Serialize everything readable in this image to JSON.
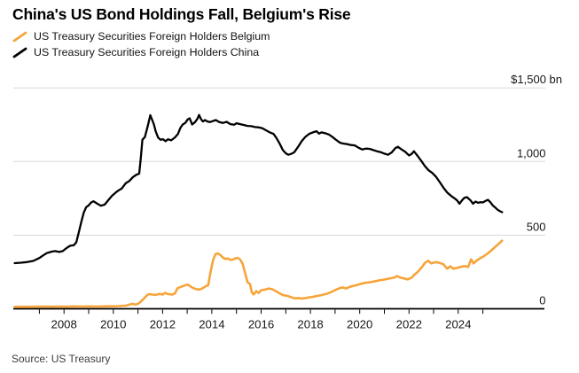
{
  "header": {
    "title": "China's US Bond Holdings Fall, Belgium's Rise"
  },
  "footer": {
    "source": "Source: US Treasury"
  },
  "colors": {
    "accent_orange": "#F7A43A",
    "series_black": "#000000",
    "grid": "#D7D7D7",
    "axis": "#000000",
    "text": "#161616",
    "muted_text": "#3C3C3C"
  },
  "chart_data": {
    "type": "line",
    "title": "China's US Bond Holdings Fall, Belgium's Rise",
    "unit": "$ bn",
    "ylim": [
      0,
      1500
    ],
    "yticks": [
      {
        "value": 1500,
        "label": "$1,500 bn"
      },
      {
        "value": 1000,
        "label": "1,000"
      },
      {
        "value": 500,
        "label": "500"
      },
      {
        "value": 0,
        "label": "0"
      }
    ],
    "xticks_labeled": [
      2008,
      2010,
      2012,
      2014,
      2016,
      2018,
      2020,
      2022,
      2024
    ],
    "xticks_minor_years": [
      2007,
      2008,
      2009,
      2010,
      2011,
      2012,
      2013,
      2014,
      2015,
      2016,
      2017,
      2018,
      2019,
      2020,
      2021,
      2022,
      2023,
      2024,
      2025
    ],
    "x_range": [
      2006,
      2025.78
    ],
    "grid": "horizontal",
    "legend_position": "top-left",
    "series": [
      {
        "id": "belgium",
        "name": "US Treasury Securities Foreign Holders Belgium",
        "color": "#F7A43A",
        "stroke_width": 2.6,
        "points": [
          [
            2006.0,
            13
          ],
          [
            2006.3,
            14
          ],
          [
            2006.6,
            13
          ],
          [
            2006.9,
            14
          ],
          [
            2007.2,
            15
          ],
          [
            2007.5,
            14
          ],
          [
            2007.8,
            15
          ],
          [
            2008.1,
            14
          ],
          [
            2008.4,
            16
          ],
          [
            2008.7,
            15
          ],
          [
            2009.0,
            16
          ],
          [
            2009.3,
            15
          ],
          [
            2009.6,
            16
          ],
          [
            2009.9,
            17
          ],
          [
            2010.2,
            18
          ],
          [
            2010.5,
            21
          ],
          [
            2010.7,
            30
          ],
          [
            2010.78,
            34
          ],
          [
            2010.9,
            28
          ],
          [
            2011.0,
            33
          ],
          [
            2011.1,
            46
          ],
          [
            2011.2,
            62
          ],
          [
            2011.3,
            80
          ],
          [
            2011.4,
            96
          ],
          [
            2011.5,
            99
          ],
          [
            2011.6,
            96
          ],
          [
            2011.7,
            94
          ],
          [
            2011.8,
            98
          ],
          [
            2011.9,
            101
          ],
          [
            2012.0,
            96
          ],
          [
            2012.1,
            108
          ],
          [
            2012.2,
            101
          ],
          [
            2012.3,
            98
          ],
          [
            2012.4,
            97
          ],
          [
            2012.5,
            104
          ],
          [
            2012.6,
            138
          ],
          [
            2012.7,
            146
          ],
          [
            2012.8,
            152
          ],
          [
            2012.9,
            158
          ],
          [
            2013.0,
            164
          ],
          [
            2013.1,
            156
          ],
          [
            2013.2,
            144
          ],
          [
            2013.3,
            137
          ],
          [
            2013.45,
            130
          ],
          [
            2013.55,
            133
          ],
          [
            2013.65,
            142
          ],
          [
            2013.75,
            152
          ],
          [
            2013.85,
            160
          ],
          [
            2013.95,
            255
          ],
          [
            2014.05,
            330
          ],
          [
            2014.15,
            372
          ],
          [
            2014.25,
            376
          ],
          [
            2014.35,
            364
          ],
          [
            2014.45,
            348
          ],
          [
            2014.55,
            338
          ],
          [
            2014.65,
            342
          ],
          [
            2014.75,
            332
          ],
          [
            2014.85,
            334
          ],
          [
            2014.95,
            342
          ],
          [
            2015.05,
            346
          ],
          [
            2015.15,
            334
          ],
          [
            2015.25,
            305
          ],
          [
            2015.35,
            240
          ],
          [
            2015.45,
            180
          ],
          [
            2015.55,
            168
          ],
          [
            2015.62,
            112
          ],
          [
            2015.7,
            97
          ],
          [
            2015.8,
            120
          ],
          [
            2015.9,
            108
          ],
          [
            2016.0,
            126
          ],
          [
            2016.15,
            130
          ],
          [
            2016.3,
            138
          ],
          [
            2016.45,
            133
          ],
          [
            2016.6,
            120
          ],
          [
            2016.75,
            104
          ],
          [
            2016.9,
            92
          ],
          [
            2017.05,
            88
          ],
          [
            2017.2,
            80
          ],
          [
            2017.35,
            71
          ],
          [
            2017.5,
            73
          ],
          [
            2017.65,
            70
          ],
          [
            2017.8,
            73
          ],
          [
            2017.95,
            77
          ],
          [
            2018.1,
            81
          ],
          [
            2018.25,
            86
          ],
          [
            2018.4,
            91
          ],
          [
            2018.55,
            97
          ],
          [
            2018.7,
            104
          ],
          [
            2018.85,
            114
          ],
          [
            2019.0,
            127
          ],
          [
            2019.15,
            138
          ],
          [
            2019.3,
            145
          ],
          [
            2019.45,
            138
          ],
          [
            2019.6,
            149
          ],
          [
            2019.75,
            155
          ],
          [
            2019.9,
            162
          ],
          [
            2020.05,
            170
          ],
          [
            2020.2,
            175
          ],
          [
            2020.35,
            179
          ],
          [
            2020.5,
            183
          ],
          [
            2020.65,
            188
          ],
          [
            2020.8,
            193
          ],
          [
            2020.95,
            197
          ],
          [
            2021.1,
            202
          ],
          [
            2021.25,
            207
          ],
          [
            2021.4,
            212
          ],
          [
            2021.5,
            222
          ],
          [
            2021.65,
            212
          ],
          [
            2021.8,
            206
          ],
          [
            2021.95,
            200
          ],
          [
            2022.1,
            210
          ],
          [
            2022.2,
            228
          ],
          [
            2022.35,
            250
          ],
          [
            2022.5,
            278
          ],
          [
            2022.65,
            312
          ],
          [
            2022.78,
            326
          ],
          [
            2022.9,
            308
          ],
          [
            2023.0,
            313
          ],
          [
            2023.1,
            318
          ],
          [
            2023.25,
            311
          ],
          [
            2023.4,
            302
          ],
          [
            2023.55,
            272
          ],
          [
            2023.68,
            288
          ],
          [
            2023.8,
            272
          ],
          [
            2023.95,
            278
          ],
          [
            2024.1,
            284
          ],
          [
            2024.25,
            290
          ],
          [
            2024.4,
            284
          ],
          [
            2024.52,
            336
          ],
          [
            2024.62,
            308
          ],
          [
            2024.75,
            328
          ],
          [
            2024.9,
            344
          ],
          [
            2025.05,
            358
          ],
          [
            2025.2,
            376
          ],
          [
            2025.35,
            398
          ],
          [
            2025.5,
            420
          ],
          [
            2025.62,
            438
          ],
          [
            2025.78,
            463
          ]
        ]
      },
      {
        "id": "china",
        "name": "US Treasury Securities Foreign Holders China",
        "color": "#000000",
        "stroke_width": 2.3,
        "points": [
          [
            2006.0,
            310
          ],
          [
            2006.25,
            313
          ],
          [
            2006.5,
            317
          ],
          [
            2006.75,
            325
          ],
          [
            2007.0,
            345
          ],
          [
            2007.15,
            362
          ],
          [
            2007.3,
            378
          ],
          [
            2007.5,
            388
          ],
          [
            2007.65,
            392
          ],
          [
            2007.8,
            386
          ],
          [
            2007.95,
            392
          ],
          [
            2008.1,
            412
          ],
          [
            2008.25,
            428
          ],
          [
            2008.4,
            432
          ],
          [
            2008.5,
            452
          ],
          [
            2008.6,
            520
          ],
          [
            2008.7,
            590
          ],
          [
            2008.8,
            652
          ],
          [
            2008.9,
            690
          ],
          [
            2009.0,
            702
          ],
          [
            2009.1,
            722
          ],
          [
            2009.2,
            730
          ],
          [
            2009.35,
            714
          ],
          [
            2009.5,
            700
          ],
          [
            2009.65,
            708
          ],
          [
            2009.8,
            738
          ],
          [
            2009.95,
            768
          ],
          [
            2010.1,
            790
          ],
          [
            2010.2,
            802
          ],
          [
            2010.35,
            818
          ],
          [
            2010.5,
            852
          ],
          [
            2010.65,
            868
          ],
          [
            2010.8,
            895
          ],
          [
            2010.95,
            912
          ],
          [
            2011.05,
            918
          ],
          [
            2011.12,
            1030
          ],
          [
            2011.18,
            1148
          ],
          [
            2011.28,
            1166
          ],
          [
            2011.4,
            1242
          ],
          [
            2011.5,
            1315
          ],
          [
            2011.58,
            1282
          ],
          [
            2011.65,
            1252
          ],
          [
            2011.72,
            1205
          ],
          [
            2011.82,
            1162
          ],
          [
            2011.92,
            1148
          ],
          [
            2012.02,
            1152
          ],
          [
            2012.12,
            1138
          ],
          [
            2012.22,
            1151
          ],
          [
            2012.35,
            1144
          ],
          [
            2012.5,
            1164
          ],
          [
            2012.62,
            1186
          ],
          [
            2012.72,
            1228
          ],
          [
            2012.82,
            1252
          ],
          [
            2012.92,
            1262
          ],
          [
            2013.02,
            1286
          ],
          [
            2013.1,
            1294
          ],
          [
            2013.2,
            1252
          ],
          [
            2013.32,
            1268
          ],
          [
            2013.42,
            1292
          ],
          [
            2013.48,
            1317
          ],
          [
            2013.56,
            1288
          ],
          [
            2013.64,
            1272
          ],
          [
            2013.72,
            1282
          ],
          [
            2013.82,
            1272
          ],
          [
            2013.92,
            1268
          ],
          [
            2014.02,
            1274
          ],
          [
            2014.16,
            1282
          ],
          [
            2014.3,
            1268
          ],
          [
            2014.44,
            1262
          ],
          [
            2014.6,
            1270
          ],
          [
            2014.75,
            1254
          ],
          [
            2014.9,
            1250
          ],
          [
            2015.0,
            1260
          ],
          [
            2015.15,
            1254
          ],
          [
            2015.3,
            1248
          ],
          [
            2015.45,
            1242
          ],
          [
            2015.6,
            1240
          ],
          [
            2015.75,
            1234
          ],
          [
            2015.9,
            1232
          ],
          [
            2016.05,
            1226
          ],
          [
            2016.2,
            1212
          ],
          [
            2016.35,
            1198
          ],
          [
            2016.5,
            1188
          ],
          [
            2016.62,
            1160
          ],
          [
            2016.75,
            1122
          ],
          [
            2016.88,
            1078
          ],
          [
            2017.0,
            1056
          ],
          [
            2017.1,
            1046
          ],
          [
            2017.22,
            1052
          ],
          [
            2017.35,
            1064
          ],
          [
            2017.5,
            1100
          ],
          [
            2017.65,
            1140
          ],
          [
            2017.8,
            1168
          ],
          [
            2017.95,
            1188
          ],
          [
            2018.1,
            1198
          ],
          [
            2018.25,
            1206
          ],
          [
            2018.35,
            1190
          ],
          [
            2018.45,
            1198
          ],
          [
            2018.6,
            1192
          ],
          [
            2018.75,
            1184
          ],
          [
            2018.9,
            1166
          ],
          [
            2019.05,
            1146
          ],
          [
            2019.2,
            1128
          ],
          [
            2019.35,
            1122
          ],
          [
            2019.5,
            1118
          ],
          [
            2019.65,
            1112
          ],
          [
            2019.8,
            1110
          ],
          [
            2019.95,
            1094
          ],
          [
            2020.1,
            1082
          ],
          [
            2020.25,
            1088
          ],
          [
            2020.4,
            1086
          ],
          [
            2020.55,
            1078
          ],
          [
            2020.7,
            1070
          ],
          [
            2020.85,
            1064
          ],
          [
            2021.0,
            1054
          ],
          [
            2021.15,
            1046
          ],
          [
            2021.3,
            1062
          ],
          [
            2021.45,
            1092
          ],
          [
            2021.55,
            1100
          ],
          [
            2021.7,
            1082
          ],
          [
            2021.85,
            1066
          ],
          [
            2022.0,
            1042
          ],
          [
            2022.1,
            1050
          ],
          [
            2022.2,
            1070
          ],
          [
            2022.35,
            1038
          ],
          [
            2022.5,
            1004
          ],
          [
            2022.65,
            968
          ],
          [
            2022.8,
            940
          ],
          [
            2022.95,
            922
          ],
          [
            2023.1,
            896
          ],
          [
            2023.25,
            860
          ],
          [
            2023.4,
            822
          ],
          [
            2023.55,
            790
          ],
          [
            2023.7,
            768
          ],
          [
            2023.85,
            750
          ],
          [
            2023.95,
            736
          ],
          [
            2024.05,
            714
          ],
          [
            2024.15,
            736
          ],
          [
            2024.25,
            754
          ],
          [
            2024.35,
            758
          ],
          [
            2024.5,
            736
          ],
          [
            2024.6,
            714
          ],
          [
            2024.7,
            728
          ],
          [
            2024.8,
            720
          ],
          [
            2024.9,
            724
          ],
          [
            2025.0,
            722
          ],
          [
            2025.1,
            732
          ],
          [
            2025.2,
            740
          ],
          [
            2025.3,
            724
          ],
          [
            2025.4,
            702
          ],
          [
            2025.5,
            688
          ],
          [
            2025.6,
            672
          ],
          [
            2025.7,
            662
          ],
          [
            2025.78,
            656
          ]
        ]
      }
    ]
  }
}
